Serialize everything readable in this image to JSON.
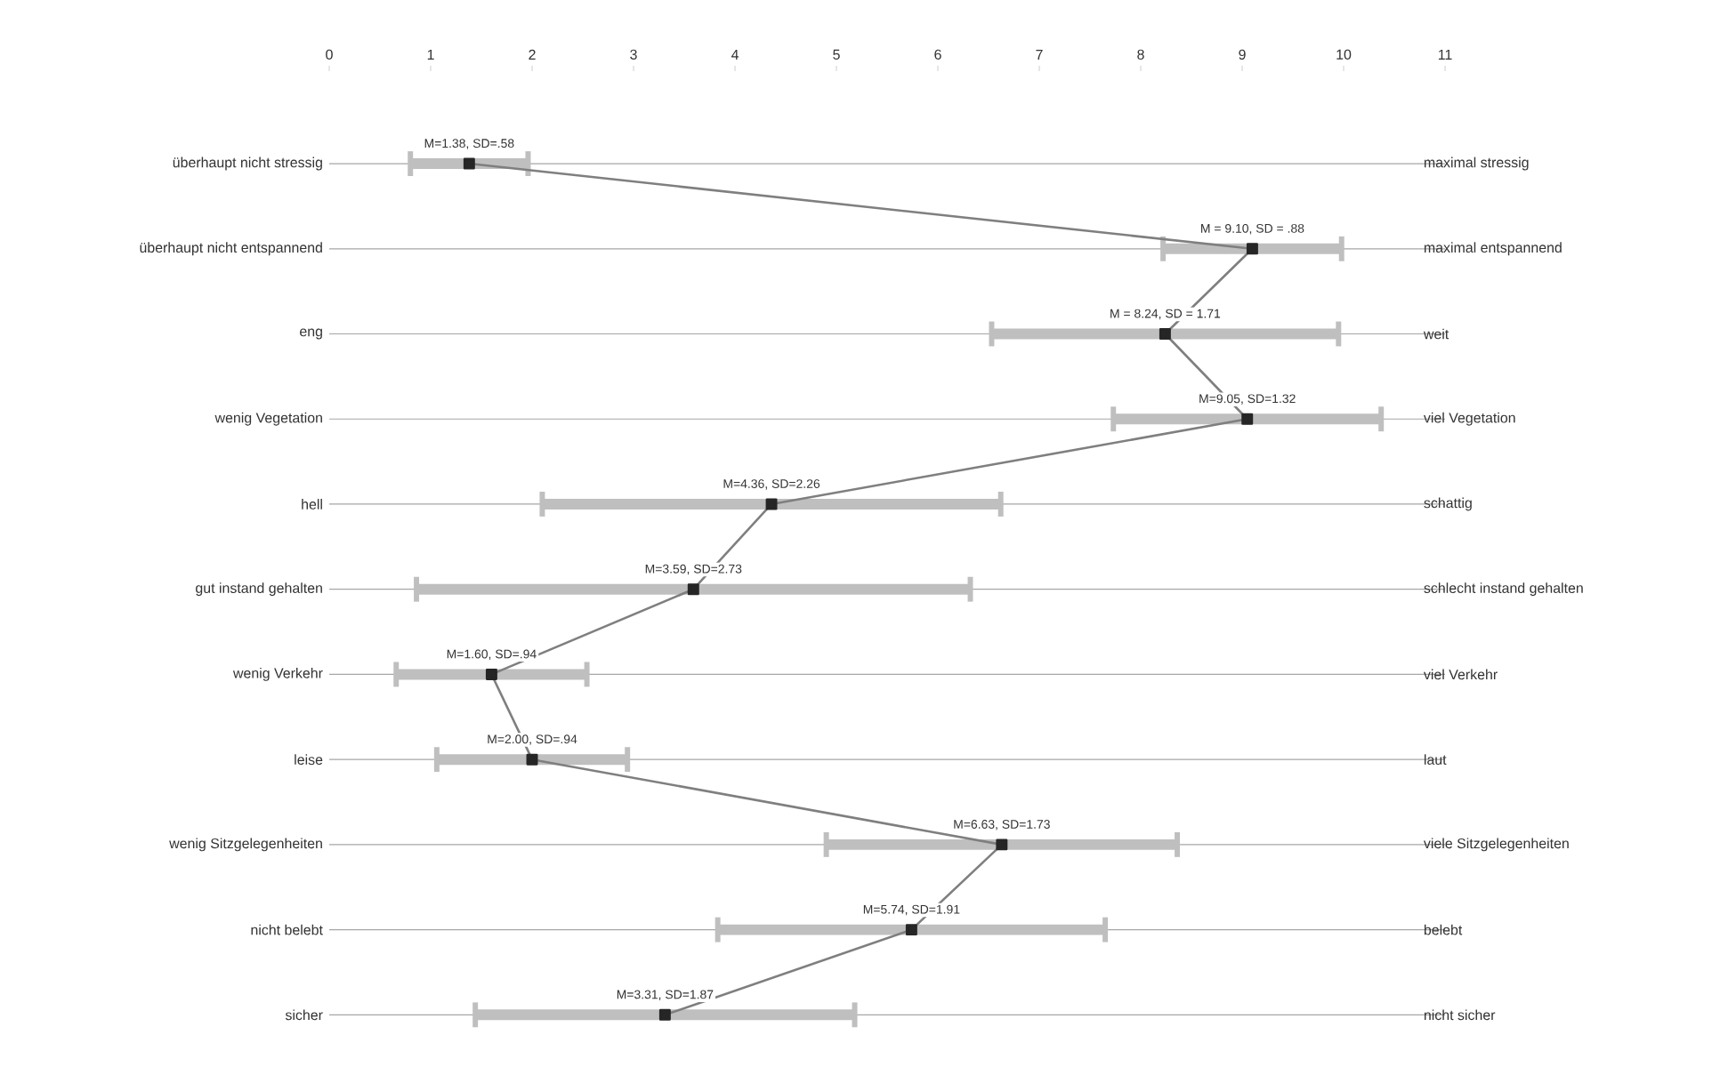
{
  "chart_data": {
    "type": "line",
    "orientation": "horizontal",
    "categories": [
      "überhaupt nicht stressig",
      "überhaupt nicht entspannend",
      "eng",
      "wenig Vegetation",
      "hell",
      "gut instand gehalten",
      "wenig Verkehr",
      "leise",
      "wenig Sitzgelegenheiten",
      "nicht belebt",
      "sicher"
    ],
    "y2_categories": [
      "maximal stressig",
      "maximal entspannend",
      "weit",
      "viel Vegetation",
      "schattig",
      "schlecht instand gehalten",
      "viel Verkehr",
      "laut",
      "viele Sitzgelegenheiten",
      "belebt",
      "nicht sicher"
    ],
    "values": [
      1.38,
      9.1,
      8.24,
      9.05,
      4.36,
      3.59,
      1.6,
      2.0,
      6.63,
      5.74,
      3.31
    ],
    "errors": [
      0.58,
      0.88,
      1.71,
      1.32,
      2.26,
      2.73,
      0.94,
      0.94,
      1.73,
      1.91,
      1.87
    ],
    "value_labels": [
      "M=1.38, SD=.58",
      "M = 9.10, SD = .88",
      "M = 8.24, SD = 1.71",
      "M=9.05, SD=1.32",
      "M=4.36, SD=2.26",
      "M=3.59, SD=2.73",
      "M=1.60, SD=.94",
      "M=2.00, SD=.94",
      "M=6.63, SD=1.73",
      "M=5.74, SD=1.91",
      "M=3.31, SD=1.87"
    ],
    "color": "#7f7f7f",
    "xlim": [
      0,
      11
    ],
    "xticks": [
      0,
      1,
      2,
      3,
      4,
      5,
      6,
      7,
      8,
      9,
      10,
      11
    ],
    "grid": "y",
    "marker": "square",
    "line_style": "solid"
  }
}
